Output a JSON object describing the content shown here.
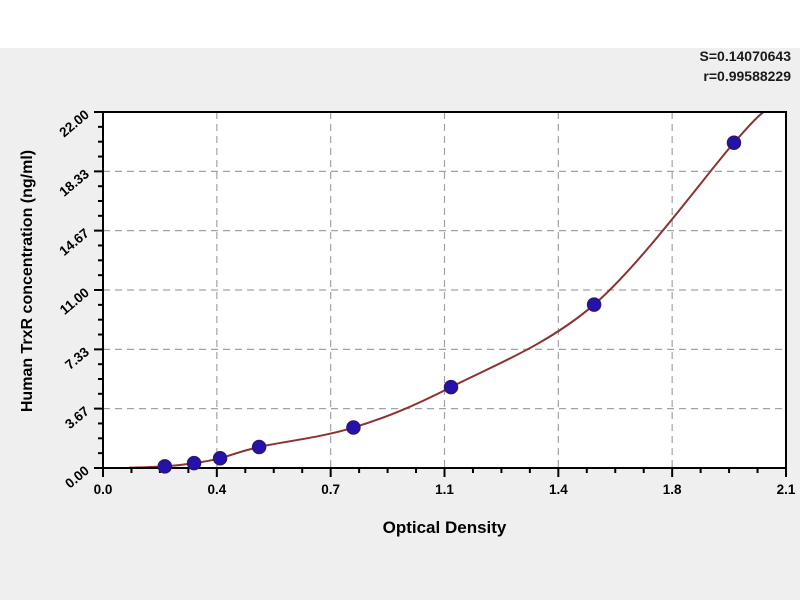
{
  "stats": {
    "s_line": "S=0.14070643",
    "r_line": "r=0.99588229"
  },
  "chart_data": {
    "type": "scatter",
    "title": "",
    "xlabel": "Optical Density",
    "ylabel": "Human TrxR concentration (ng/ml)",
    "xlim": [
      0,
      2.1
    ],
    "ylim": [
      0,
      22
    ],
    "grid": "dashed, at every major division",
    "legend_position": "none",
    "x_ticks": [
      0,
      0.35,
      0.7,
      1.05,
      1.4,
      1.75,
      2.1
    ],
    "x_tick_labels": [
      "0.0",
      "0.4",
      "0.7",
      "1.1",
      "1.4",
      "1.8",
      "2.1"
    ],
    "y_ticks": [
      0,
      3.67,
      7.33,
      11,
      14.67,
      18.33,
      22
    ],
    "y_tick_labels": [
      "0.00",
      "3.67",
      "7.33",
      "11.00",
      "14.67",
      "18.33",
      "22.00"
    ],
    "minor_ticks_per_interval": 3,
    "series": [
      {
        "name": "standards",
        "marker": "filled-circle",
        "points": [
          {
            "x": 0.19,
            "y": 0.1
          },
          {
            "x": 0.28,
            "y": 0.3
          },
          {
            "x": 0.36,
            "y": 0.6
          },
          {
            "x": 0.48,
            "y": 1.3
          },
          {
            "x": 0.77,
            "y": 2.5
          },
          {
            "x": 1.07,
            "y": 5.0
          },
          {
            "x": 1.51,
            "y": 10.1
          },
          {
            "x": 1.94,
            "y": 20.1
          }
        ]
      }
    ],
    "fit_curve": {
      "name": "regression curve",
      "anchors": [
        [
          0.08,
          0.02
        ],
        [
          0.19,
          0.1
        ],
        [
          0.28,
          0.3
        ],
        [
          0.36,
          0.6
        ],
        [
          0.48,
          1.3
        ],
        [
          0.77,
          2.5
        ],
        [
          1.07,
          5.0
        ],
        [
          1.51,
          10.1
        ],
        [
          1.94,
          20.1
        ],
        [
          2.03,
          22.0
        ]
      ]
    },
    "colors": {
      "plot_background": "#ffffff",
      "page_background": "#efefef",
      "axis": "#000000",
      "grid": "#a3a3a3",
      "curve": "#8b3232",
      "marker_fill": "#2313ad",
      "marker_stroke": "#321272",
      "text": "#000000"
    }
  }
}
